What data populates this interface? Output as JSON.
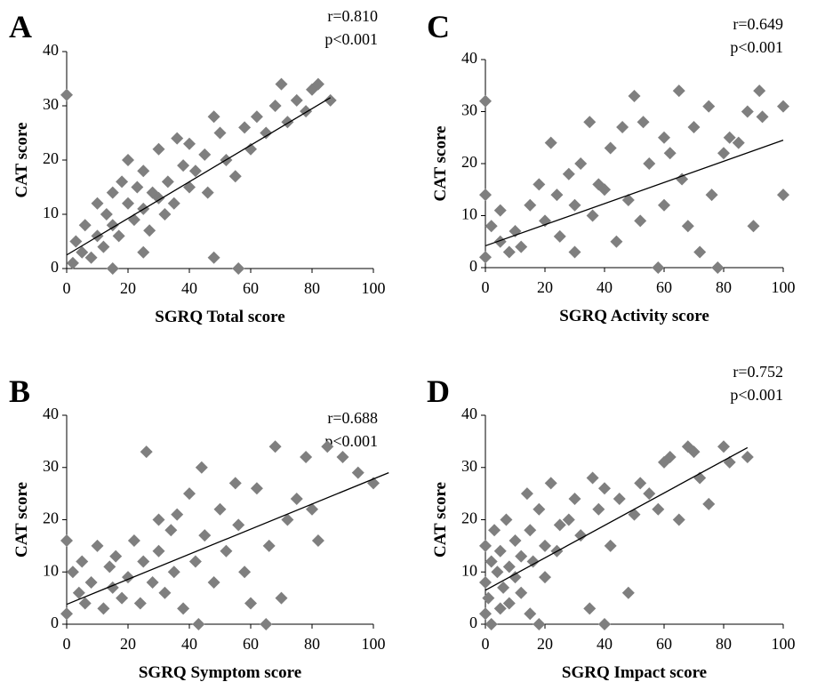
{
  "chart_data": [
    {
      "type": "scatter",
      "label": "A",
      "annotations": [
        "r=0.810",
        "p<0.001"
      ],
      "x_label": "SGRQ Total score",
      "y_label": "CAT score",
      "color": "#7f7f7f",
      "xlim": [
        0,
        100
      ],
      "ylim": [
        0,
        40
      ],
      "xticks": [
        0,
        20,
        40,
        60,
        80,
        100
      ],
      "yticks": [
        0,
        10,
        20,
        30,
        40
      ],
      "x": [
        0,
        2,
        3,
        5,
        6,
        8,
        10,
        10,
        12,
        13,
        15,
        15,
        17,
        18,
        20,
        20,
        22,
        23,
        25,
        25,
        27,
        28,
        30,
        30,
        32,
        33,
        35,
        36,
        38,
        40,
        40,
        42,
        45,
        46,
        48,
        50,
        52,
        55,
        56,
        58,
        60,
        62,
        65,
        68,
        70,
        72,
        75,
        78,
        80,
        82,
        86,
        48,
        25,
        15
      ],
      "values": [
        32,
        1,
        5,
        3,
        8,
        2,
        12,
        6,
        4,
        10,
        8,
        14,
        6,
        16,
        12,
        20,
        9,
        15,
        11,
        18,
        7,
        14,
        13,
        22,
        10,
        16,
        12,
        24,
        19,
        15,
        23,
        18,
        21,
        14,
        28,
        25,
        20,
        17,
        0,
        26,
        22,
        28,
        25,
        30,
        34,
        27,
        31,
        29,
        33,
        34,
        31,
        2,
        3,
        0
      ],
      "trendline": {
        "x": [
          0,
          86
        ],
        "y": [
          2.5,
          31.5
        ]
      }
    },
    {
      "type": "scatter",
      "label": "C",
      "annotations": [
        "r=0.649",
        "p<0.001"
      ],
      "x_label": "SGRQ Activity score",
      "y_label": "CAT score",
      "color": "#7f7f7f",
      "xlim": [
        0,
        100
      ],
      "ylim": [
        0,
        40
      ],
      "xticks": [
        0,
        20,
        40,
        60,
        80,
        100
      ],
      "yticks": [
        0,
        10,
        20,
        30,
        40
      ],
      "x": [
        0,
        0,
        0,
        2,
        5,
        5,
        8,
        10,
        12,
        15,
        18,
        20,
        22,
        24,
        25,
        28,
        30,
        30,
        32,
        35,
        36,
        38,
        40,
        42,
        44,
        46,
        48,
        50,
        52,
        53,
        55,
        58,
        60,
        60,
        62,
        65,
        66,
        68,
        70,
        72,
        75,
        76,
        78,
        80,
        82,
        85,
        88,
        90,
        92,
        93,
        100,
        100
      ],
      "values": [
        32,
        14,
        2,
        8,
        5,
        11,
        3,
        7,
        4,
        12,
        16,
        9,
        24,
        14,
        6,
        18,
        12,
        3,
        20,
        28,
        10,
        16,
        15,
        23,
        5,
        27,
        13,
        33,
        9,
        28,
        20,
        0,
        25,
        12,
        22,
        34,
        17,
        8,
        27,
        3,
        31,
        14,
        0,
        22,
        25,
        24,
        30,
        8,
        34,
        29,
        31,
        14
      ],
      "trendline": {
        "x": [
          0,
          100
        ],
        "y": [
          4.2,
          24.5
        ]
      }
    },
    {
      "type": "scatter",
      "label": "B",
      "annotations": [
        "r=0.688",
        "p<0.001"
      ],
      "x_label": "SGRQ Symptom score",
      "y_label": "CAT score",
      "color": "#7f7f7f",
      "xlim": [
        0,
        100
      ],
      "ylim": [
        0,
        40
      ],
      "xticks": [
        0,
        20,
        40,
        60,
        80,
        100
      ],
      "yticks": [
        0,
        10,
        20,
        30,
        40
      ],
      "x": [
        0,
        0,
        2,
        4,
        5,
        6,
        8,
        10,
        12,
        14,
        15,
        16,
        18,
        20,
        22,
        24,
        25,
        26,
        28,
        30,
        30,
        32,
        34,
        35,
        36,
        38,
        40,
        42,
        43,
        44,
        45,
        48,
        50,
        52,
        55,
        56,
        58,
        60,
        62,
        65,
        66,
        68,
        70,
        72,
        75,
        78,
        80,
        82,
        85,
        90,
        95,
        100
      ],
      "values": [
        16,
        2,
        10,
        6,
        12,
        4,
        8,
        15,
        3,
        11,
        7,
        13,
        5,
        9,
        16,
        4,
        12,
        33,
        8,
        20,
        14,
        6,
        18,
        10,
        21,
        3,
        25,
        12,
        0,
        30,
        17,
        8,
        22,
        14,
        27,
        19,
        10,
        4,
        26,
        0,
        15,
        34,
        5,
        20,
        24,
        32,
        22,
        16,
        34,
        32,
        29,
        27
      ],
      "trendline": {
        "x": [
          0,
          105
        ],
        "y": [
          3.8,
          29
        ]
      }
    },
    {
      "type": "scatter",
      "label": "D",
      "annotations": [
        "r=0.752",
        "p<0.001"
      ],
      "x_label": "SGRQ Impact score",
      "y_label": "CAT score",
      "color": "#7f7f7f",
      "xlim": [
        0,
        100
      ],
      "ylim": [
        0,
        40
      ],
      "xticks": [
        0,
        20,
        40,
        60,
        80,
        100
      ],
      "yticks": [
        0,
        10,
        20,
        30,
        40
      ],
      "x": [
        0,
        0,
        0,
        1,
        2,
        2,
        3,
        4,
        5,
        5,
        6,
        7,
        8,
        8,
        10,
        10,
        12,
        12,
        14,
        15,
        15,
        16,
        18,
        18,
        20,
        20,
        22,
        24,
        25,
        28,
        30,
        32,
        35,
        36,
        38,
        40,
        40,
        42,
        45,
        48,
        50,
        52,
        55,
        58,
        60,
        62,
        65,
        68,
        70,
        72,
        75,
        80,
        82,
        88
      ],
      "values": [
        2,
        8,
        15,
        5,
        12,
        0,
        18,
        10,
        3,
        14,
        7,
        20,
        11,
        4,
        16,
        9,
        13,
        6,
        25,
        2,
        18,
        12,
        0,
        22,
        15,
        9,
        27,
        14,
        19,
        20,
        24,
        17,
        3,
        28,
        22,
        0,
        26,
        15,
        24,
        6,
        21,
        27,
        25,
        22,
        31,
        32,
        20,
        34,
        33,
        28,
        23,
        34,
        31,
        32
      ],
      "trendline": {
        "x": [
          0,
          88
        ],
        "y": [
          6.5,
          33.8
        ]
      }
    }
  ]
}
